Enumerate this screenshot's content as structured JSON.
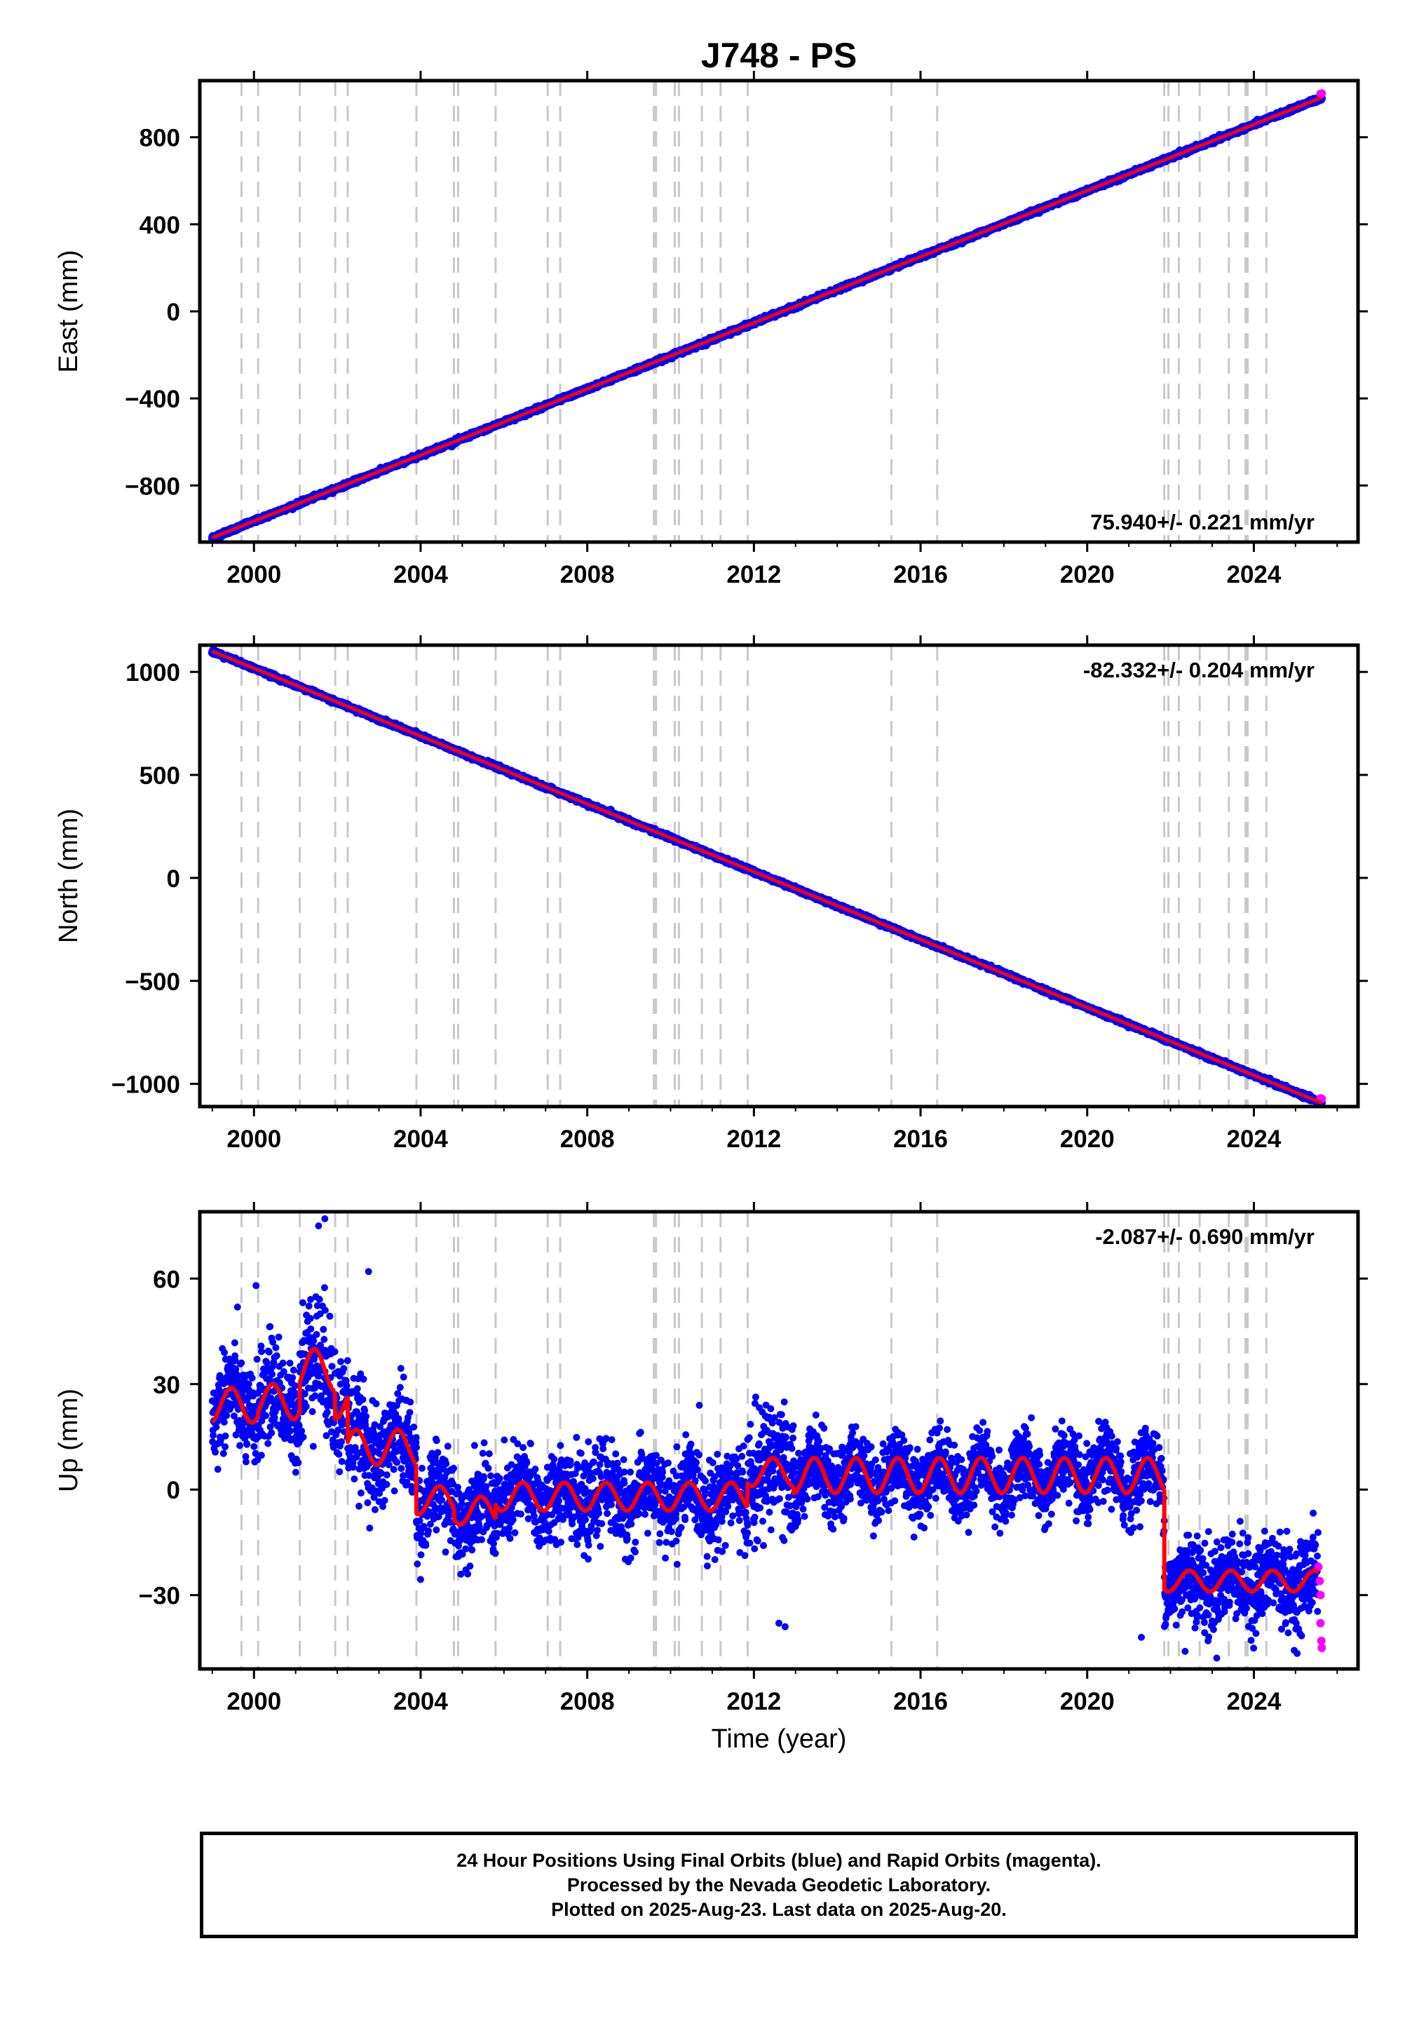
{
  "title": "J748 - PS",
  "xlabel": "Time (year)",
  "caption": {
    "line1": "24 Hour Positions Using Final Orbits (blue) and Rapid Orbits (magenta).",
    "line2": "Processed by the Nevada Geodetic Laboratory.",
    "line3": "Plotted on 2025-Aug-23. Last data on 2025-Aug-20."
  },
  "colors": {
    "final_orbits": "#0000ff",
    "rapid_orbits": "#ff00ff",
    "model_fit": "#ff0000",
    "event_lines": "#c8c8c8"
  },
  "chart_data": [
    {
      "type": "scatter",
      "ylabel": "East (mm)",
      "xlim": [
        1998.7,
        2026.5
      ],
      "ylim": [
        -1060,
        1060
      ],
      "xticks": [
        2000,
        2004,
        2008,
        2012,
        2016,
        2020,
        2024
      ],
      "yticks": [
        -800,
        -400,
        0,
        400,
        800
      ],
      "ytick_labels": [
        "−800",
        "−400",
        "0",
        "400",
        "800"
      ],
      "rate_label": "75.940+/- 0.221 mm/yr",
      "rate_label_position": "bottom-right",
      "start": 1999.0,
      "end": 2025.63,
      "start_value": -1040,
      "slope": 75.94,
      "noise": 4,
      "event_lines": [
        1999.7,
        2000.1,
        2001.1,
        2001.95,
        2002.25,
        2003.9,
        2004.8,
        2004.9,
        2005.8,
        2007.05,
        2007.35,
        2009.6,
        2009.65,
        2010.1,
        2010.2,
        2010.75,
        2011.2,
        2011.85,
        2015.3,
        2016.4,
        2021.85,
        2021.95,
        2022.2,
        2022.7,
        2023.4,
        2023.8,
        2023.85,
        2024.3
      ],
      "rapid_points": [
        [
          2025.6,
          999
        ],
        [
          2025.63,
          1001
        ]
      ]
    },
    {
      "type": "scatter",
      "ylabel": "North (mm)",
      "xlim": [
        1998.7,
        2026.5
      ],
      "ylim": [
        -1110,
        1130
      ],
      "xticks": [
        2000,
        2004,
        2008,
        2012,
        2016,
        2020,
        2024
      ],
      "yticks": [
        -1000,
        -500,
        0,
        500,
        1000
      ],
      "ytick_labels": [
        "−1000",
        "−500",
        "0",
        "500",
        "1000"
      ],
      "rate_label": "-82.332+/- 0.204 mm/yr",
      "rate_label_position": "top-right",
      "start": 1999.0,
      "end": 2025.63,
      "start_value": 1100,
      "slope": -82.332,
      "noise": 4,
      "event_lines": [
        1999.7,
        2000.1,
        2001.1,
        2001.95,
        2002.25,
        2003.9,
        2004.8,
        2004.9,
        2005.8,
        2007.05,
        2007.35,
        2009.6,
        2009.65,
        2010.1,
        2010.2,
        2010.75,
        2011.2,
        2011.85,
        2015.3,
        2016.4,
        2021.85,
        2021.95,
        2022.2,
        2022.7,
        2023.4,
        2023.8,
        2023.85,
        2024.3
      ],
      "rapid_points": [
        [
          2025.6,
          -1070
        ],
        [
          2025.63,
          -1072
        ]
      ]
    },
    {
      "type": "scatter",
      "ylabel": "Up (mm)",
      "xlim": [
        1998.7,
        2026.5
      ],
      "ylim": [
        -51,
        79
      ],
      "xticks": [
        2000,
        2004,
        2008,
        2012,
        2016,
        2020,
        2024
      ],
      "yticks": [
        -30,
        0,
        30,
        60
      ],
      "ytick_labels": [
        "−30",
        "0",
        "30",
        "60"
      ],
      "rate_label": "-2.087+/- 0.690 mm/yr",
      "rate_label_position": "top-right",
      "start": 1999.0,
      "end": 2025.63,
      "event_lines": [
        1999.7,
        2000.1,
        2001.1,
        2001.95,
        2002.25,
        2003.9,
        2004.8,
        2004.9,
        2005.8,
        2007.05,
        2007.35,
        2009.6,
        2009.65,
        2010.1,
        2010.2,
        2010.75,
        2011.2,
        2011.85,
        2015.3,
        2016.4,
        2021.85,
        2021.95,
        2022.2,
        2022.7,
        2023.4,
        2023.8,
        2023.85,
        2024.3
      ],
      "segments": [
        {
          "from": 1999.0,
          "to": 2000.1,
          "base": 24,
          "amp": 5,
          "noise": 7
        },
        {
          "from": 2000.1,
          "to": 2001.1,
          "base": 25,
          "amp": 5,
          "noise": 7
        },
        {
          "from": 2001.1,
          "to": 2001.95,
          "base": 34,
          "amp": 6,
          "noise": 9
        },
        {
          "from": 2001.95,
          "to": 2002.25,
          "base": 25,
          "amp": 5,
          "noise": 8
        },
        {
          "from": 2002.25,
          "to": 2003.9,
          "base": 12,
          "amp": 5,
          "noise": 7
        },
        {
          "from": 2003.9,
          "to": 2004.8,
          "base": -3,
          "amp": 4,
          "noise": 6
        },
        {
          "from": 2004.8,
          "to": 2005.8,
          "base": -6,
          "amp": 4,
          "noise": 6
        },
        {
          "from": 2005.8,
          "to": 2011.85,
          "base": -2,
          "amp": 4,
          "noise": 6
        },
        {
          "from": 2011.85,
          "to": 2012.95,
          "base": 5,
          "amp": 4,
          "noise": 9
        },
        {
          "from": 2012.95,
          "to": 2021.85,
          "base": 4,
          "amp": 5,
          "noise": 5
        },
        {
          "from": 2021.85,
          "to": 2025.55,
          "base": -26,
          "amp": 3,
          "noise": 6
        }
      ],
      "extreme_points": [
        [
          2001.7,
          77
        ],
        [
          2001.55,
          75
        ],
        [
          2002.75,
          62
        ],
        [
          2000.05,
          58
        ],
        [
          2012.75,
          -39
        ],
        [
          2012.6,
          -38
        ],
        [
          2022.35,
          -46
        ],
        [
          2021.3,
          -42
        ],
        [
          2022.9,
          -43
        ]
      ],
      "rapid_points": [
        [
          2025.55,
          -22
        ],
        [
          2025.58,
          -26
        ],
        [
          2025.6,
          -30
        ],
        [
          2025.6,
          -38
        ],
        [
          2025.62,
          -43
        ],
        [
          2025.63,
          -45
        ]
      ]
    }
  ]
}
